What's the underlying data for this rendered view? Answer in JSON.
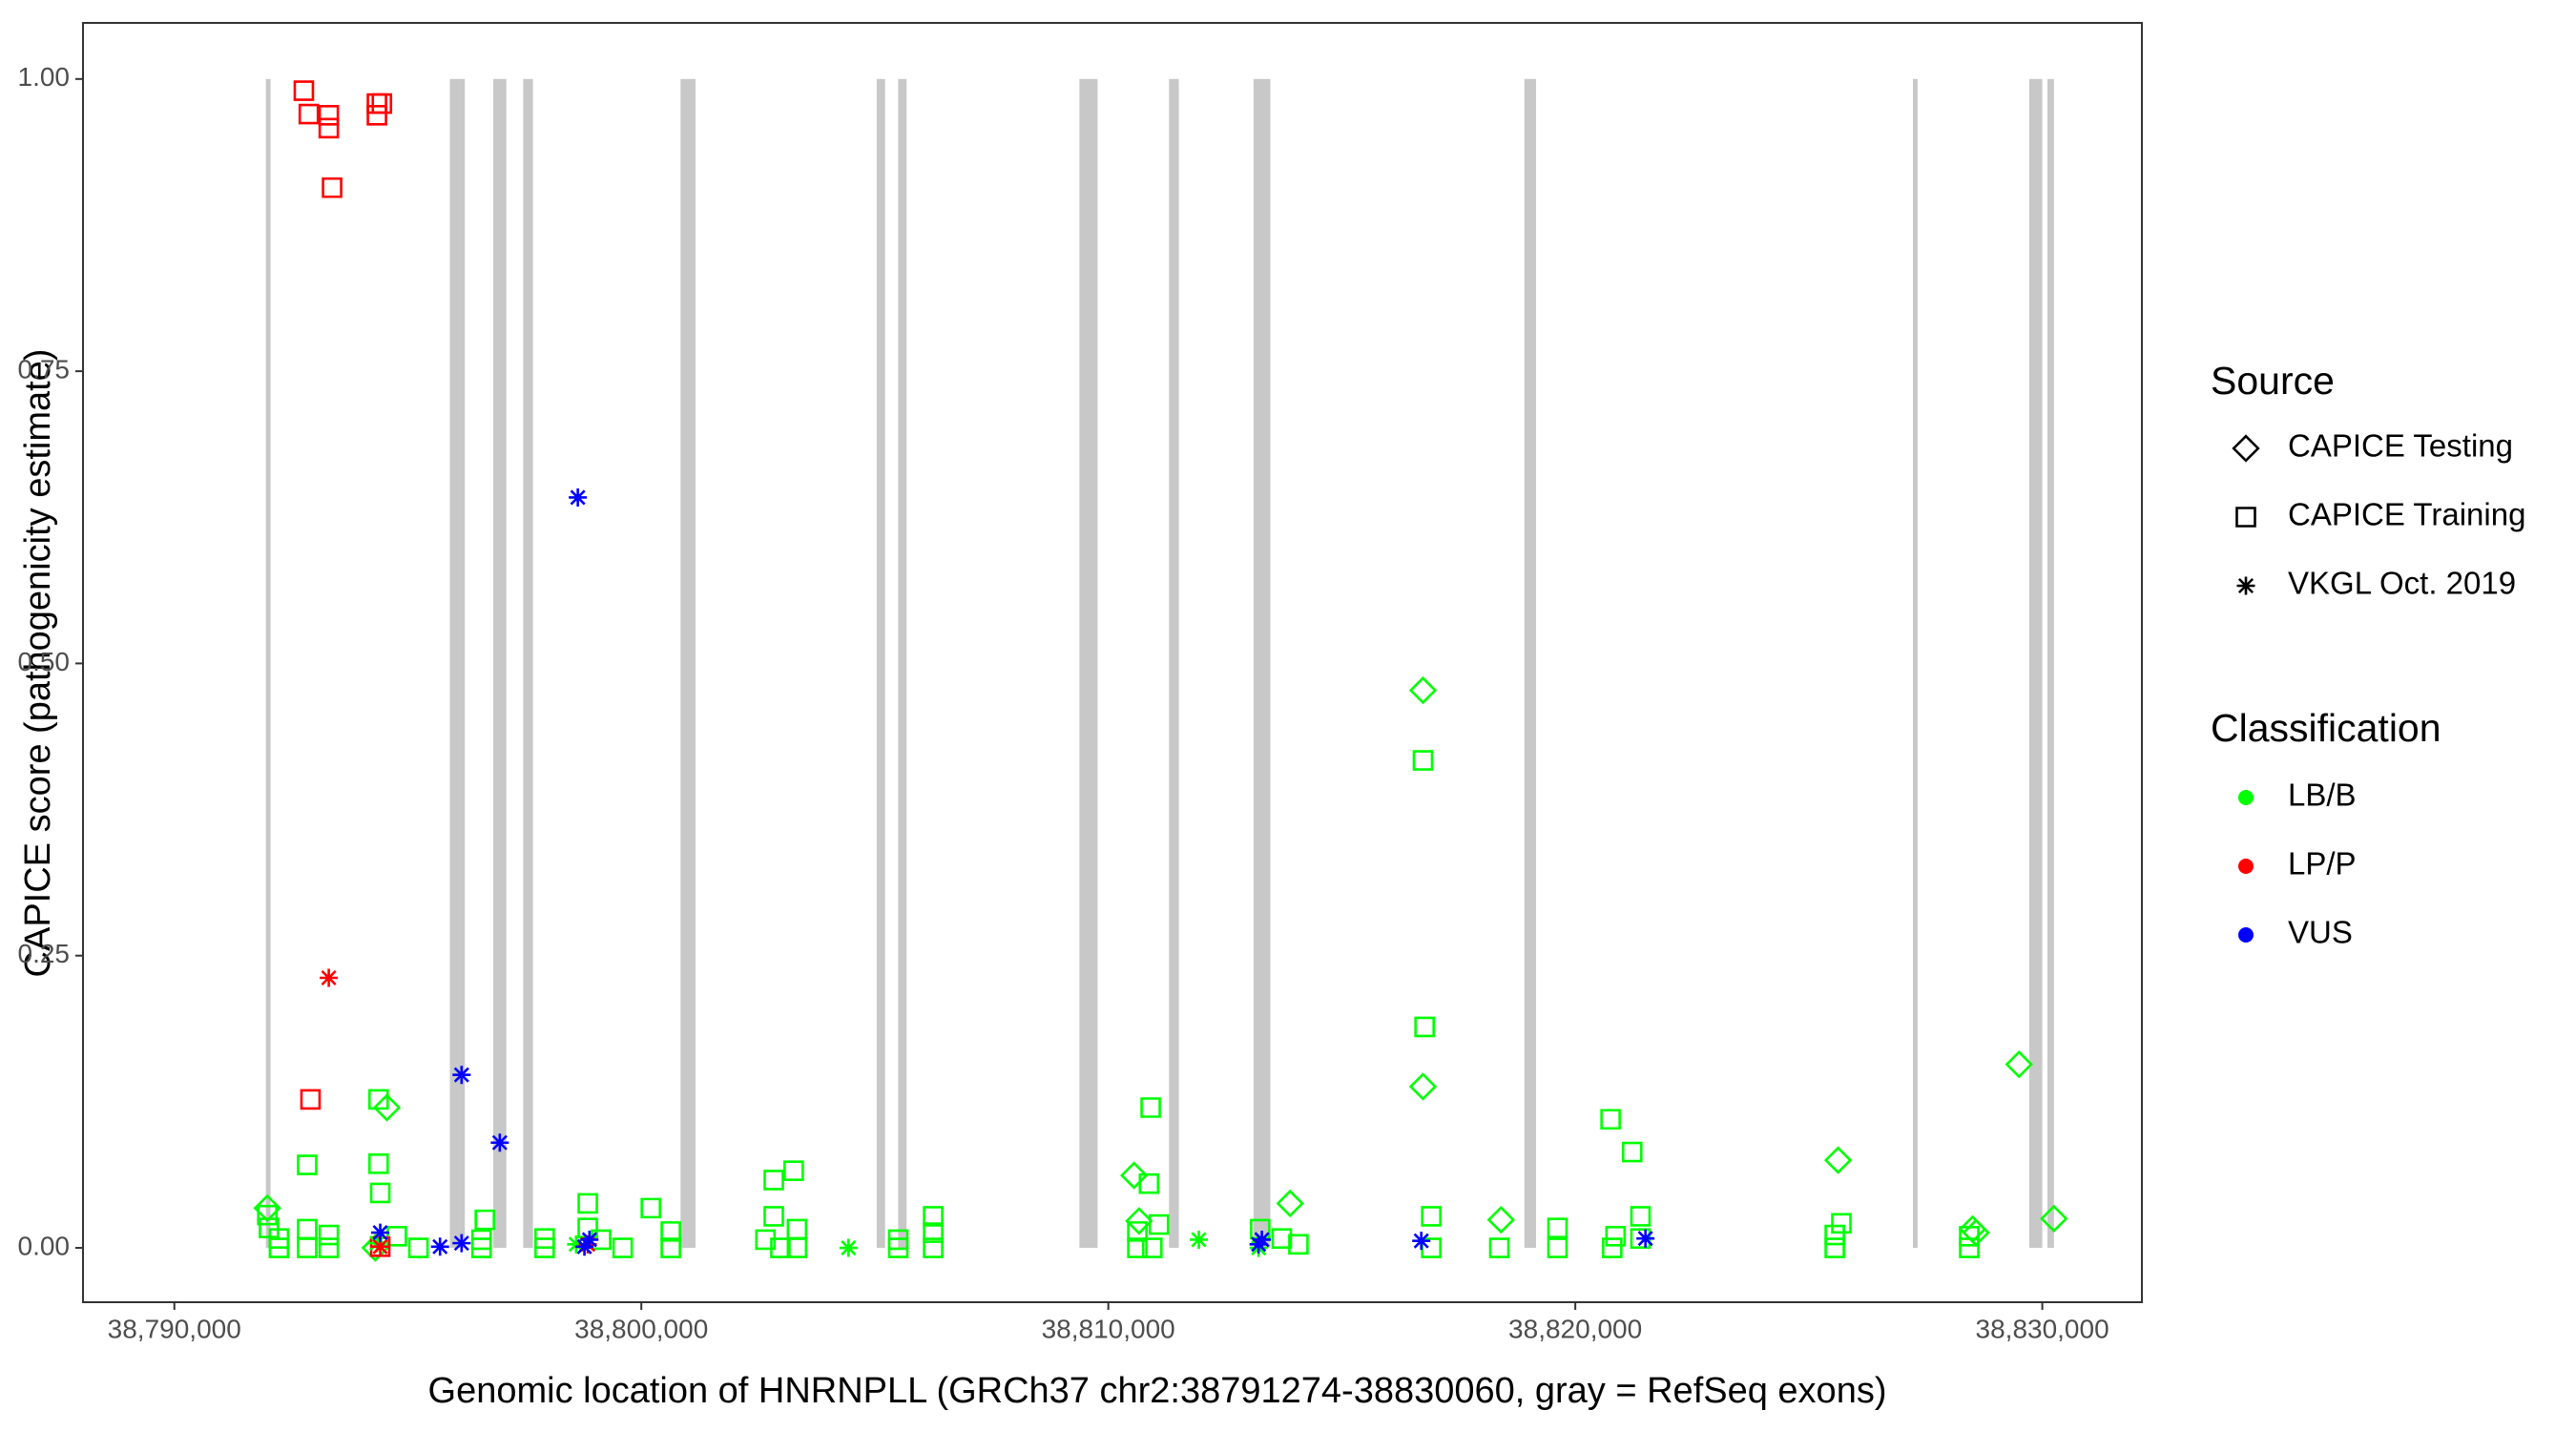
{
  "chart_data": {
    "type": "scatter",
    "xlabel": "Genomic location of HNRNPLL (GRCh37 chr2:38791274-38830060, gray = RefSeq exons)",
    "ylabel": "CAPICE score (pathogenicity estimate)",
    "xlim": [
      38788044,
      38832133
    ],
    "ylim": [
      -0.0465,
      1.048
    ],
    "xticks": [
      {
        "value": 38790000,
        "label": "38,790,000"
      },
      {
        "value": 38800000,
        "label": "38,800,000"
      },
      {
        "value": 38810000,
        "label": "38,810,000"
      },
      {
        "value": 38820000,
        "label": "38,820,000"
      },
      {
        "value": 38830000,
        "label": "38,830,000"
      }
    ],
    "yticks": [
      {
        "value": 0,
        "label": "0.00"
      },
      {
        "value": 0.25,
        "label": "0.25"
      },
      {
        "value": 0.5,
        "label": "0.50"
      },
      {
        "value": 0.75,
        "label": "0.75"
      },
      {
        "value": 1,
        "label": "1.00"
      }
    ],
    "exon_color": "#c8c8c8",
    "exons": [
      [
        38791960,
        38792060
      ],
      [
        38795900,
        38796220
      ],
      [
        38796830,
        38797110
      ],
      [
        38797470,
        38797680
      ],
      [
        38800840,
        38801160
      ],
      [
        38805040,
        38805220
      ],
      [
        38805500,
        38805680
      ],
      [
        38809380,
        38809770
      ],
      [
        38811300,
        38811510
      ],
      [
        38813110,
        38813470
      ],
      [
        38818910,
        38819160
      ],
      [
        38827230,
        38827330
      ],
      [
        38829720,
        38830000
      ],
      [
        38830110,
        38830250
      ]
    ],
    "shape_legend": {
      "title": "Source",
      "items": [
        {
          "name": "CAPICE Testing",
          "shape": "diamond"
        },
        {
          "name": "CAPICE Training",
          "shape": "square"
        },
        {
          "name": "VKGL Oct. 2019",
          "shape": "star"
        }
      ]
    },
    "color_legend": {
      "title": "Classification",
      "items": [
        {
          "name": "LB/B",
          "color": "#00ff00"
        },
        {
          "name": "LP/P",
          "color": "#ff0000"
        },
        {
          "name": "VUS",
          "color": "#0000ff"
        }
      ]
    },
    "series": [
      {
        "shape": "diamond",
        "color": "#00ff00",
        "x": [
          38791991,
          38794551,
          38794302,
          38810551,
          38810658,
          38813893,
          38816738,
          38816738,
          38818409,
          38825627,
          38828507,
          38829502,
          38830249,
          38828580
        ],
        "y": [
          0.034,
          0.12,
          0.0,
          0.062,
          0.023,
          0.038,
          0.477,
          0.138,
          0.024,
          0.075,
          0.016,
          0.157,
          0.025,
          0.013
        ]
      },
      {
        "shape": "square",
        "color": "#00ff00",
        "x": [
          38791991,
          38792027,
          38792240,
          38792240,
          38792844,
          38792844,
          38792844,
          38793307,
          38793307,
          38794373,
          38794373,
          38794409,
          38794764,
          38795227,
          38796649,
          38796578,
          38796578,
          38797929,
          38797929,
          38798853,
          38798853,
          38799138,
          38799600,
          38800204,
          38800631,
          38800631,
          38802836,
          38803262,
          38802836,
          38802658,
          38802978,
          38803333,
          38803333,
          38805502,
          38805502,
          38806249,
          38806249,
          38806249,
          38810907,
          38810871,
          38810622,
          38810622,
          38811084,
          38810942,
          38813253,
          38813715,
          38814071,
          38816738,
          38816773,
          38816916,
          38816916,
          38818373,
          38819618,
          38819618,
          38820756,
          38821218,
          38821396,
          38820862,
          38820791,
          38821396,
          38825698,
          38825556,
          38825556,
          38828436,
          38828436
        ],
        "y": [
          0.028,
          0.017,
          0.008,
          0.0,
          0.071,
          0.016,
          0.0,
          0.011,
          0.0,
          0.127,
          0.072,
          0.047,
          0.01,
          0.0,
          0.024,
          0.007,
          0.0,
          0.008,
          0.0,
          0.038,
          0.017,
          0.007,
          0.0,
          0.034,
          0.014,
          0.0,
          0.058,
          0.066,
          0.027,
          0.007,
          0.0,
          0.016,
          0.0,
          0.0,
          0.007,
          0.027,
          0.013,
          0.0,
          0.12,
          0.055,
          0.0,
          0.014,
          0.02,
          0.0,
          0.016,
          0.008,
          0.003,
          0.417,
          0.189,
          0.027,
          0.0,
          0.0,
          0.017,
          0.0,
          0.11,
          0.082,
          0.027,
          0.01,
          0.0,
          0.008,
          0.021,
          0.011,
          0.0,
          0.01,
          0.0
        ]
      },
      {
        "shape": "square",
        "color": "#ff0000",
        "x": [
          38792773,
          38792880,
          38793307,
          38793307,
          38794338,
          38794444,
          38794338,
          38793378,
          38792916,
          38794409
        ],
        "y": [
          0.99,
          0.97,
          0.969,
          0.958,
          0.979,
          0.979,
          0.969,
          0.907,
          0.127,
          0.001
        ]
      },
      {
        "shape": "star",
        "color": "#00ff00",
        "x": [
          38794338,
          38804436,
          38811938,
          38813218,
          38798604
        ],
        "y": [
          0.004,
          0.0,
          0.007,
          0.0,
          0.003
        ]
      },
      {
        "shape": "star",
        "color": "#ff0000",
        "x": [
          38793307,
          38794409,
          38798853
        ],
        "y": [
          0.231,
          0.001,
          0.003
        ]
      },
      {
        "shape": "star",
        "color": "#0000ff",
        "x": [
          38798640,
          38796151,
          38796969,
          38794409,
          38795689,
          38796151,
          38798889,
          38798782,
          38813218,
          38813289,
          38816702,
          38821502
        ],
        "y": [
          0.642,
          0.148,
          0.09,
          0.013,
          0.001,
          0.004,
          0.007,
          0.001,
          0.003,
          0.007,
          0.006,
          0.008
        ]
      }
    ]
  }
}
